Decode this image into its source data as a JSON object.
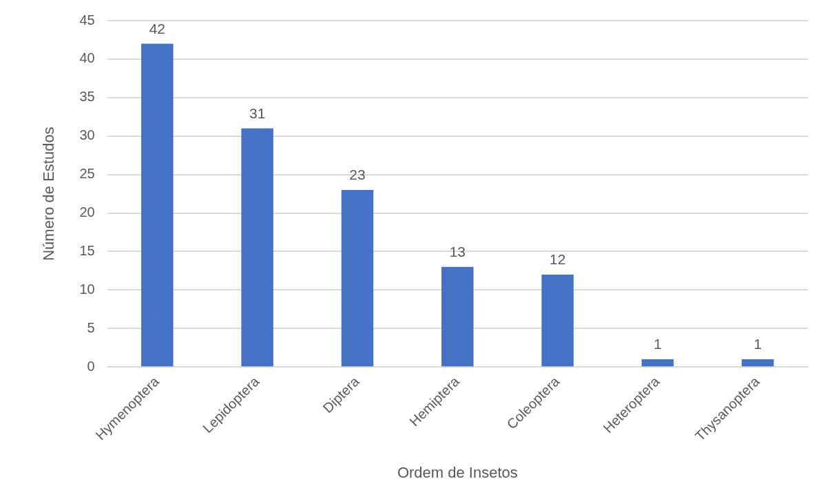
{
  "chart_data": {
    "type": "bar",
    "xlabel": "Ordem de Insetos",
    "ylabel": "Número de Estudos",
    "categories": [
      "Hymenoptera",
      "Lepidoptera",
      "Diptera",
      "Hemiptera",
      "Coleoptera",
      "Heteroptera",
      "Thysanoptera"
    ],
    "values": [
      42,
      31,
      23,
      13,
      12,
      1,
      1
    ],
    "color": "#4472c4",
    "ylim": [
      0,
      45
    ],
    "yticks": [
      0,
      5,
      10,
      15,
      20,
      25,
      30,
      35,
      40,
      45
    ],
    "grid": "y",
    "data_labels": true,
    "legend": false
  }
}
